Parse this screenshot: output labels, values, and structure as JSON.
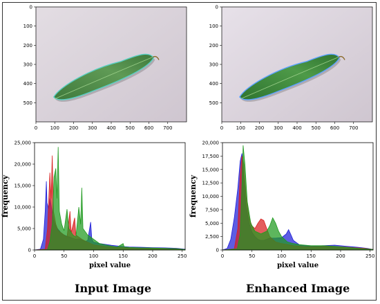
{
  "figure": {
    "captions": {
      "left": "Input Image",
      "right": "Enhanced Image"
    }
  },
  "image_panels": [
    {
      "id": "input",
      "x_ticks": [
        0,
        100,
        200,
        300,
        400,
        500,
        600,
        700
      ],
      "y_ticks": [
        0,
        100,
        200,
        300,
        400,
        500
      ],
      "x_range": [
        0,
        800
      ],
      "y_range": [
        0,
        600
      ],
      "colors": {
        "background": "#e3dde3",
        "leaf": "#5f9a55",
        "leaf_dark": "#3f7a3c",
        "rim": "#58d0c4"
      }
    },
    {
      "id": "enhanced",
      "x_ticks": [
        0,
        100,
        200,
        300,
        400,
        500,
        600,
        700
      ],
      "y_ticks": [
        0,
        100,
        200,
        300,
        400,
        500
      ],
      "x_range": [
        0,
        800
      ],
      "y_range": [
        0,
        600
      ],
      "colors": {
        "background": "#e7e1e9",
        "leaf": "#4e9a48",
        "leaf_dark": "#2f7430",
        "rim": "#5aa2ff"
      }
    }
  ],
  "chart_data": [
    {
      "type": "area",
      "xlabel": "pixel value",
      "ylabel": "frequency",
      "xlim": [
        0,
        255
      ],
      "ylim": [
        0,
        25000
      ],
      "x_ticks": [
        0,
        50,
        100,
        150,
        200,
        250
      ],
      "y_ticks": [
        0,
        5000,
        10000,
        15000,
        20000,
        25000
      ],
      "y_tick_labels": [
        "0",
        "5,000",
        "10,000",
        "15,000",
        "20,000",
        "25,000"
      ],
      "grid": false,
      "series": [
        {
          "color": "#1f1fd8",
          "points": [
            [
              0,
              0
            ],
            [
              10,
              200
            ],
            [
              15,
              2500
            ],
            [
              18,
              9000
            ],
            [
              20,
              16000
            ],
            [
              21,
              11000
            ],
            [
              24,
              9500
            ],
            [
              26,
              12000
            ],
            [
              28,
              10500
            ],
            [
              32,
              7000
            ],
            [
              36,
              5500
            ],
            [
              40,
              4800
            ],
            [
              45,
              4000
            ],
            [
              50,
              3500
            ],
            [
              55,
              3200
            ],
            [
              60,
              3000
            ],
            [
              65,
              2700
            ],
            [
              70,
              2500
            ],
            [
              75,
              2600
            ],
            [
              80,
              2300
            ],
            [
              85,
              2000
            ],
            [
              90,
              2200
            ],
            [
              95,
              6500
            ],
            [
              97,
              2500
            ],
            [
              100,
              1800
            ],
            [
              110,
              1500
            ],
            [
              120,
              1300
            ],
            [
              130,
              1100
            ],
            [
              140,
              950
            ],
            [
              150,
              800
            ],
            [
              160,
              700
            ],
            [
              180,
              650
            ],
            [
              200,
              550
            ],
            [
              220,
              500
            ],
            [
              240,
              400
            ],
            [
              255,
              200
            ]
          ]
        },
        {
          "color": "#d81f1f",
          "points": [
            [
              0,
              0
            ],
            [
              18,
              200
            ],
            [
              22,
              5000
            ],
            [
              26,
              18000
            ],
            [
              28,
              12000
            ],
            [
              30,
              22000
            ],
            [
              32,
              9000
            ],
            [
              36,
              6000
            ],
            [
              40,
              4500
            ],
            [
              50,
              3500
            ],
            [
              55,
              3000
            ],
            [
              60,
              9000
            ],
            [
              62,
              4000
            ],
            [
              68,
              7500
            ],
            [
              70,
              3500
            ],
            [
              80,
              2500
            ],
            [
              90,
              1800
            ],
            [
              100,
              1200
            ],
            [
              120,
              800
            ],
            [
              140,
              600
            ],
            [
              160,
              500
            ],
            [
              180,
              450
            ],
            [
              200,
              400
            ],
            [
              220,
              350
            ],
            [
              240,
              300
            ],
            [
              255,
              100
            ]
          ]
        },
        {
          "color": "#1f9a1f",
          "points": [
            [
              0,
              0
            ],
            [
              22,
              100
            ],
            [
              26,
              2000
            ],
            [
              30,
              6000
            ],
            [
              33,
              17000
            ],
            [
              36,
              19000
            ],
            [
              38,
              12000
            ],
            [
              40,
              24000
            ],
            [
              42,
              9000
            ],
            [
              46,
              6000
            ],
            [
              50,
              4500
            ],
            [
              55,
              9500
            ],
            [
              58,
              5000
            ],
            [
              65,
              3500
            ],
            [
              70,
              3000
            ],
            [
              75,
              10000
            ],
            [
              78,
              6000
            ],
            [
              80,
              14500
            ],
            [
              82,
              5000
            ],
            [
              90,
              3500
            ],
            [
              100,
              2500
            ],
            [
              110,
              1500
            ],
            [
              120,
              1200
            ],
            [
              130,
              900
            ],
            [
              140,
              700
            ],
            [
              150,
              1500
            ],
            [
              152,
              700
            ],
            [
              160,
              600
            ],
            [
              180,
              500
            ],
            [
              200,
              450
            ],
            [
              220,
              380
            ],
            [
              240,
              300
            ],
            [
              255,
              100
            ]
          ]
        }
      ]
    },
    {
      "type": "area",
      "xlabel": "pixel value",
      "ylabel": "frequency",
      "xlim": [
        0,
        255
      ],
      "ylim": [
        0,
        20000
      ],
      "x_ticks": [
        0,
        50,
        100,
        150,
        200,
        250
      ],
      "y_ticks": [
        0,
        2500,
        5000,
        7500,
        10000,
        12500,
        15000,
        17500,
        20000
      ],
      "y_tick_labels": [
        "0",
        "2,500",
        "5,000",
        "7,500",
        "10,000",
        "12,500",
        "15,000",
        "17,500",
        "20,000"
      ],
      "grid": false,
      "series": [
        {
          "color": "#1f1fd8",
          "points": [
            [
              0,
              0
            ],
            [
              8,
              300
            ],
            [
              14,
              2000
            ],
            [
              20,
              6000
            ],
            [
              26,
              11500
            ],
            [
              30,
              16500
            ],
            [
              33,
              18000
            ],
            [
              36,
              13000
            ],
            [
              40,
              8000
            ],
            [
              45,
              5000
            ],
            [
              50,
              3300
            ],
            [
              55,
              2500
            ],
            [
              60,
              2000
            ],
            [
              65,
              1800
            ],
            [
              70,
              1800
            ],
            [
              75,
              2000
            ],
            [
              80,
              2200
            ],
            [
              90,
              2200
            ],
            [
              100,
              2300
            ],
            [
              108,
              3000
            ],
            [
              112,
              3800
            ],
            [
              116,
              2800
            ],
            [
              120,
              1800
            ],
            [
              130,
              1000
            ],
            [
              140,
              800
            ],
            [
              150,
              700
            ],
            [
              170,
              800
            ],
            [
              190,
              900
            ],
            [
              210,
              700
            ],
            [
              230,
              500
            ],
            [
              245,
              300
            ],
            [
              255,
              100
            ]
          ]
        },
        {
          "color": "#d81f1f",
          "points": [
            [
              0,
              0
            ],
            [
              20,
              200
            ],
            [
              26,
              4000
            ],
            [
              30,
              14000
            ],
            [
              33,
              17500
            ],
            [
              36,
              16000
            ],
            [
              40,
              10000
            ],
            [
              45,
              6000
            ],
            [
              50,
              4500
            ],
            [
              55,
              4000
            ],
            [
              60,
              5000
            ],
            [
              65,
              5800
            ],
            [
              70,
              5500
            ],
            [
              75,
              4000
            ],
            [
              80,
              2500
            ],
            [
              90,
              1500
            ],
            [
              100,
              1200
            ],
            [
              120,
              800
            ],
            [
              140,
              600
            ],
            [
              160,
              600
            ],
            [
              180,
              700
            ],
            [
              200,
              600
            ],
            [
              220,
              450
            ],
            [
              240,
              300
            ],
            [
              255,
              100
            ]
          ]
        },
        {
          "color": "#1f9a1f",
          "points": [
            [
              0,
              0
            ],
            [
              25,
              200
            ],
            [
              30,
              3000
            ],
            [
              33,
              12000
            ],
            [
              35,
              19500
            ],
            [
              38,
              16000
            ],
            [
              42,
              9000
            ],
            [
              48,
              5000
            ],
            [
              55,
              3500
            ],
            [
              65,
              3000
            ],
            [
              75,
              3500
            ],
            [
              80,
              4500
            ],
            [
              85,
              6000
            ],
            [
              90,
              5000
            ],
            [
              95,
              3500
            ],
            [
              100,
              2500
            ],
            [
              110,
              1500
            ],
            [
              120,
              1200
            ],
            [
              130,
              1000
            ],
            [
              140,
              900
            ],
            [
              150,
              800
            ],
            [
              170,
              800
            ],
            [
              190,
              700
            ],
            [
              210,
              500
            ],
            [
              230,
              300
            ],
            [
              255,
              100
            ]
          ]
        }
      ]
    }
  ]
}
